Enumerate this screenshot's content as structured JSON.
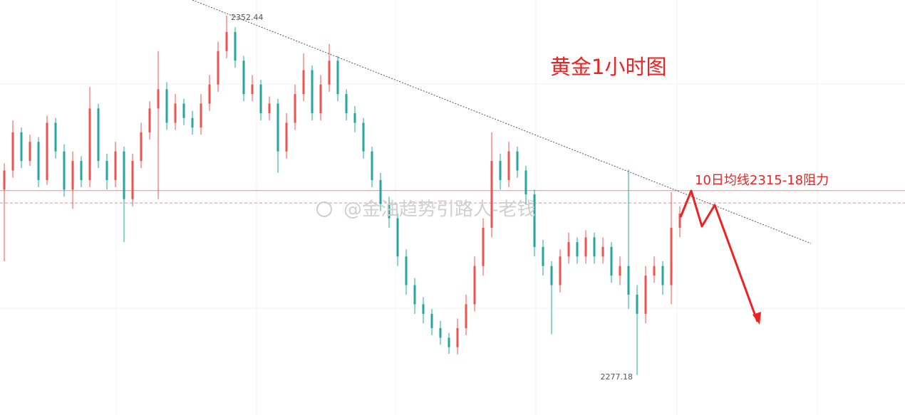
{
  "chart_data": {
    "type": "candlestick",
    "title": "黄金1小时图",
    "annotation": "10日均线2315-18阻力",
    "watermark": "@金油趋势引路人-老钱",
    "up_color": "#ef5350",
    "down_color": "#26a69a",
    "ylim": [
      2270,
      2356
    ],
    "hlines": [
      2315.8,
      2313.2
    ],
    "open": [
      2316,
      2320,
      2328,
      2322,
      2326,
      2318,
      2330,
      2324,
      2316,
      2322,
      2318,
      2333,
      2322,
      2318,
      2324,
      2314,
      2322,
      2328,
      2333,
      2337,
      2330,
      2334,
      2331,
      2329,
      2334,
      2338,
      2345,
      2349,
      2343,
      2336,
      2338,
      2332,
      2334,
      2324,
      2330,
      2336,
      2341,
      2332,
      2338,
      2343,
      2336,
      2332,
      2330,
      2324,
      2318,
      2313,
      2310,
      2302,
      2296,
      2292,
      2290,
      2287,
      2285,
      2283,
      2287,
      2292,
      2300,
      2308,
      2322,
      2318,
      2324,
      2320,
      2315,
      2304,
      2300,
      2296,
      2302,
      2305,
      2302,
      2306,
      2302,
      2304,
      2298,
      2300,
      2294,
      2290,
      2298,
      2300,
      2296,
      2308
    ],
    "high": [
      2321.5,
      2330.5,
      2329,
      2327.5,
      2327,
      2331.5,
      2331,
      2325.5,
      2324,
      2323,
      2337.5,
      2334,
      2323.5,
      2326,
      2325,
      2323.5,
      2330,
      2334.5,
      2345,
      2338.5,
      2336,
      2335,
      2332.5,
      2336,
      2340,
      2347,
      2352.44,
      2350,
      2344,
      2340,
      2339,
      2335.5,
      2335,
      2332,
      2338,
      2344.5,
      2342,
      2340,
      2346.5,
      2344,
      2337,
      2333.5,
      2331,
      2325,
      2319.5,
      2314.5,
      2311,
      2303.5,
      2297.5,
      2293.5,
      2291,
      2288.5,
      2286,
      2289,
      2294,
      2302,
      2310,
      2328,
      2323.5,
      2326,
      2325,
      2321,
      2316,
      2305.5,
      2301,
      2303.5,
      2307,
      2306,
      2307.5,
      2307,
      2306,
      2305,
      2302,
      2320.2,
      2296,
      2300,
      2302,
      2301,
      2315.5,
      2312.5
    ],
    "low": [
      2301,
      2318.5,
      2320.5,
      2321,
      2316.5,
      2317,
      2322.5,
      2314.5,
      2312,
      2316.5,
      2316.5,
      2320.5,
      2316,
      2316.5,
      2305,
      2312.5,
      2320.5,
      2326.5,
      2314,
      2328.5,
      2328.5,
      2329.5,
      2327.5,
      2327.5,
      2332.5,
      2336.5,
      2343.5,
      2341.5,
      2334.5,
      2334.5,
      2330.5,
      2330.5,
      2319.5,
      2322.5,
      2328.5,
      2334.5,
      2330.5,
      2330.5,
      2336.5,
      2334.5,
      2330.5,
      2328,
      2322.5,
      2316.5,
      2311.5,
      2308,
      2300,
      2294,
      2290,
      2288,
      2285.5,
      2283.5,
      2281.6,
      2281.5,
      2285.5,
      2290.5,
      2298,
      2306,
      2316,
      2316.5,
      2318.5,
      2313,
      2302,
      2298,
      2285.7,
      2294.5,
      2300.5,
      2300.5,
      2300.5,
      2300.5,
      2300.5,
      2296.5,
      2296,
      2291,
      2277.18,
      2288,
      2296.5,
      2294,
      2292,
      2306
    ],
    "close": [
      2320,
      2328,
      2322,
      2326,
      2318,
      2330,
      2324,
      2316,
      2322,
      2318,
      2333,
      2322,
      2318,
      2324,
      2314,
      2322,
      2328,
      2333,
      2337,
      2330,
      2334,
      2331,
      2329,
      2334,
      2338,
      2345,
      2349,
      2343,
      2336,
      2338,
      2332,
      2334,
      2324,
      2330,
      2336,
      2341,
      2332,
      2338,
      2343,
      2336,
      2332,
      2330,
      2324,
      2318,
      2313,
      2310,
      2302,
      2296,
      2292,
      2290,
      2287,
      2285,
      2283,
      2287,
      2292,
      2300,
      2308,
      2322,
      2318,
      2324,
      2320,
      2315,
      2304,
      2300,
      2296,
      2302,
      2305,
      2302,
      2306,
      2302,
      2304,
      2298,
      2300,
      2294,
      2290,
      2298,
      2300,
      2296,
      2308,
      2311
    ]
  }
}
